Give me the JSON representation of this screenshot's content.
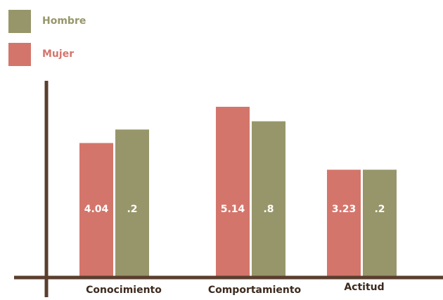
{
  "chart_data": {
    "type": "bar",
    "categories": [
      "Conocimiento",
      "Comportamiento",
      "Actitud"
    ],
    "series": [
      {
        "name": "Hombre",
        "color": "#97966a",
        "values": [
          4.45,
          4.7,
          3.23
        ],
        "value_labels": [
          ".2",
          ".8",
          ".2"
        ]
      },
      {
        "name": "Mujer",
        "color": "#d4756b",
        "values": [
          4.04,
          5.14,
          3.23
        ]
      }
    ]
  }
}
